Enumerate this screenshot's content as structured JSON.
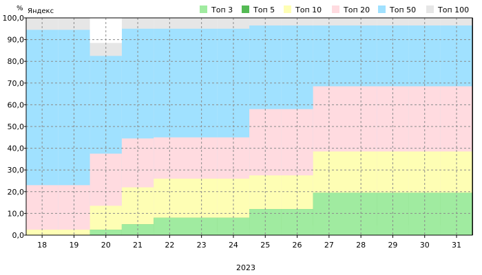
{
  "chart_data": {
    "type": "area",
    "title": "Яндекс",
    "y_unit_label": "%",
    "xlabel": "2023",
    "ylabel": "",
    "ylim": [
      0,
      100
    ],
    "y_ticks": [
      "0,0",
      "10,0",
      "20,0",
      "30,0",
      "40,0",
      "50,0",
      "60,0",
      "70,0",
      "80,0",
      "90,0",
      "100,0"
    ],
    "categories": [
      "18",
      "19",
      "20",
      "21",
      "22",
      "23",
      "24",
      "25",
      "26",
      "27",
      "28",
      "29",
      "30",
      "31",
      ""
    ],
    "stacked": "cumulative",
    "grid": true,
    "legend_position": "top-right",
    "series": [
      {
        "name": "Топ 3",
        "color": "#a0eba0",
        "values": [
          0,
          0,
          2.5,
          5,
          8,
          8,
          8,
          12,
          12,
          19.5,
          19.5,
          19.5,
          19.5,
          19.5,
          17.5
        ]
      },
      {
        "name": "Топ 5",
        "color": "#54ba54",
        "values": [
          0,
          0,
          2.5,
          5,
          8,
          8,
          8,
          12,
          12,
          19.5,
          19.5,
          19.5,
          19.5,
          19.5,
          17.5
        ]
      },
      {
        "name": "Топ 10",
        "color": "#fefeb4",
        "values": [
          2.5,
          2.5,
          13.5,
          22,
          26,
          26,
          26,
          27.5,
          27.5,
          38.5,
          38.5,
          38.5,
          38.5,
          38.5,
          35
        ]
      },
      {
        "name": "Топ 20",
        "color": "#ffdbe0",
        "values": [
          23,
          23,
          37.5,
          44.5,
          45,
          45,
          45,
          58,
          58,
          68.5,
          68.5,
          68.5,
          68.5,
          68.5,
          68.5
        ]
      },
      {
        "name": "Топ 50",
        "color": "#a0e1ff",
        "values": [
          94.5,
          94.5,
          82.5,
          95,
          95,
          95,
          95,
          96.5,
          96.5,
          96.5,
          96.5,
          96.5,
          96.5,
          96.5,
          96.5
        ]
      },
      {
        "name": "Топ 100",
        "color": "#e6e6e6",
        "values": [
          100,
          100,
          88.5,
          100,
          100,
          100,
          100,
          100,
          100,
          100,
          100,
          100,
          100,
          100,
          100
        ]
      }
    ],
    "gap_column": {
      "category": "20",
      "color": "#ffffff"
    },
    "top3_inner_band": {
      "color": "#a0eba0",
      "values": [
        0,
        0,
        0,
        0,
        1.5,
        1.5,
        1.5,
        2.5,
        2.5,
        4.5,
        4.5,
        4.5,
        4.5,
        4.5,
        4.5
      ]
    }
  }
}
